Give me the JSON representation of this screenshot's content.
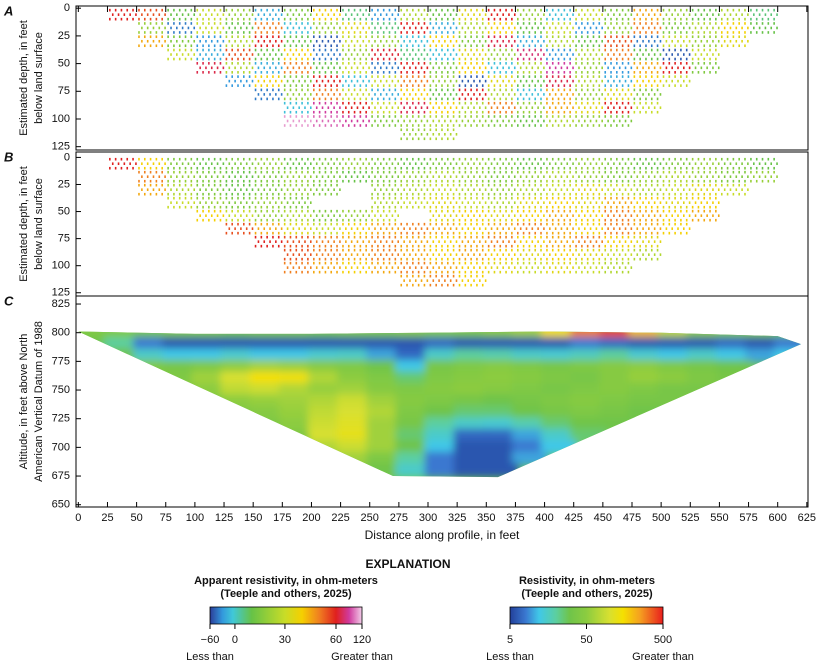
{
  "chart_data": [
    {
      "type": "dot-section",
      "panel": "A",
      "ylabel": [
        "Estimated depth, in feet",
        "below land surface"
      ],
      "x": [
        12.5,
        37.5,
        62.5,
        87.5,
        112.5,
        137.5,
        162.5,
        187.5,
        212.5,
        237.5,
        262.5,
        287.5,
        312.5,
        337.5,
        362.5,
        387.5,
        412.5,
        437.5,
        462.5,
        487.5,
        512.5,
        537.5,
        562.5,
        587.5,
        612.5
      ],
      "y": [
        6,
        18,
        30,
        42,
        54,
        66,
        78,
        90,
        102,
        114
      ],
      "values": [
        [
          null,
          60,
          55,
          10,
          30,
          20,
          -20,
          15,
          40,
          5,
          -30,
          25,
          10,
          35,
          60,
          20,
          -10,
          30,
          15,
          45,
          20,
          10,
          25,
          5,
          null
        ],
        [
          null,
          null,
          20,
          -40,
          30,
          10,
          50,
          -10,
          20,
          35,
          5,
          60,
          -20,
          25,
          40,
          10,
          30,
          -30,
          20,
          50,
          15,
          25,
          40,
          10,
          null
        ],
        [
          null,
          null,
          45,
          15,
          -30,
          25,
          60,
          10,
          -50,
          30,
          20,
          -10,
          40,
          15,
          70,
          -20,
          25,
          10,
          55,
          -40,
          30,
          20,
          35,
          null,
          null
        ],
        [
          null,
          null,
          null,
          30,
          -20,
          55,
          10,
          40,
          -40,
          20,
          65,
          5,
          -10,
          35,
          20,
          80,
          -30,
          25,
          50,
          10,
          -50,
          30,
          null,
          null,
          null
        ],
        [
          null,
          null,
          null,
          null,
          70,
          25,
          -20,
          50,
          10,
          30,
          -40,
          60,
          15,
          40,
          -10,
          25,
          90,
          20,
          -30,
          45,
          60,
          15,
          null,
          null,
          null
        ],
        [
          null,
          null,
          null,
          null,
          null,
          -30,
          40,
          15,
          60,
          -10,
          30,
          50,
          20,
          -50,
          35,
          10,
          70,
          25,
          -20,
          40,
          30,
          null,
          null,
          null,
          null
        ],
        [
          null,
          null,
          null,
          null,
          null,
          null,
          -40,
          20,
          50,
          30,
          -20,
          40,
          10,
          60,
          25,
          -10,
          45,
          20,
          35,
          15,
          null,
          null,
          null,
          null,
          null
        ],
        [
          null,
          null,
          null,
          null,
          null,
          null,
          null,
          -10,
          90,
          60,
          30,
          70,
          40,
          25,
          50,
          20,
          45,
          35,
          60,
          30,
          null,
          null,
          null,
          null,
          null
        ],
        [
          null,
          null,
          null,
          null,
          null,
          null,
          null,
          110,
          100,
          90,
          15,
          20,
          25,
          20,
          15,
          10,
          25,
          20,
          15,
          null,
          null,
          null,
          null,
          null,
          null
        ],
        [
          null,
          null,
          null,
          null,
          null,
          null,
          null,
          null,
          null,
          null,
          null,
          20,
          25,
          null,
          null,
          null,
          null,
          null,
          null,
          null,
          null,
          null,
          null,
          null,
          null
        ]
      ],
      "xlim": [
        -2,
        626
      ],
      "ylim": [
        -2,
        128
      ],
      "yticks": [
        0,
        25,
        50,
        75,
        100,
        125
      ]
    },
    {
      "type": "dot-section",
      "panel": "B",
      "ylabel": [
        "Estimated depth, in feet",
        "below land surface"
      ],
      "x": [
        12.5,
        37.5,
        62.5,
        87.5,
        112.5,
        137.5,
        162.5,
        187.5,
        212.5,
        237.5,
        262.5,
        287.5,
        312.5,
        337.5,
        362.5,
        387.5,
        412.5,
        437.5,
        462.5,
        487.5,
        512.5,
        537.5,
        562.5,
        587.5,
        612.5
      ],
      "y": [
        6,
        18,
        30,
        42,
        54,
        66,
        78,
        90,
        102,
        114
      ],
      "values": [
        [
          null,
          60,
          40,
          15,
          10,
          15,
          20,
          10,
          15,
          20,
          15,
          10,
          15,
          20,
          15,
          10,
          15,
          20,
          15,
          10,
          15,
          20,
          15,
          10,
          null
        ],
        [
          null,
          null,
          50,
          20,
          15,
          10,
          15,
          20,
          15,
          10,
          15,
          20,
          25,
          20,
          15,
          20,
          25,
          20,
          15,
          20,
          25,
          20,
          15,
          20,
          null
        ],
        [
          null,
          null,
          45,
          25,
          15,
          10,
          15,
          20,
          15,
          null,
          20,
          25,
          30,
          25,
          20,
          25,
          30,
          35,
          30,
          25,
          30,
          35,
          30,
          null,
          null
        ],
        [
          null,
          null,
          null,
          30,
          20,
          15,
          20,
          15,
          null,
          null,
          25,
          30,
          35,
          30,
          25,
          35,
          40,
          35,
          45,
          40,
          35,
          40,
          null,
          null,
          null
        ],
        [
          null,
          null,
          null,
          null,
          40,
          30,
          20,
          25,
          15,
          20,
          30,
          null,
          35,
          40,
          35,
          40,
          45,
          40,
          50,
          45,
          40,
          45,
          null,
          null,
          null
        ],
        [
          null,
          null,
          null,
          null,
          null,
          55,
          45,
          35,
          30,
          40,
          45,
          50,
          45,
          40,
          45,
          50,
          45,
          40,
          50,
          45,
          40,
          null,
          null,
          null,
          null
        ],
        [
          null,
          null,
          null,
          null,
          null,
          null,
          60,
          55,
          50,
          45,
          50,
          45,
          40,
          45,
          50,
          40,
          45,
          50,
          40,
          35,
          null,
          null,
          null,
          null,
          null
        ],
        [
          null,
          null,
          null,
          null,
          null,
          null,
          null,
          55,
          50,
          45,
          50,
          45,
          40,
          45,
          40,
          35,
          40,
          35,
          30,
          25,
          null,
          null,
          null,
          null,
          null
        ],
        [
          null,
          null,
          null,
          null,
          null,
          null,
          null,
          50,
          45,
          40,
          45,
          50,
          45,
          40,
          35,
          30,
          35,
          30,
          25,
          null,
          null,
          null,
          null,
          null,
          null
        ],
        [
          null,
          null,
          null,
          null,
          null,
          null,
          null,
          null,
          null,
          null,
          null,
          45,
          50,
          40,
          null,
          null,
          null,
          null,
          null,
          null,
          null,
          null,
          null,
          null,
          null
        ]
      ],
      "xlim": [
        -2,
        626
      ],
      "ylim": [
        -5,
        128
      ],
      "yticks": [
        0,
        25,
        50,
        75,
        100,
        125
      ]
    },
    {
      "type": "contour-section",
      "panel": "C",
      "ylabel": [
        "Altitude, in feet above North",
        "American Vertical Datum of 1988"
      ],
      "xlabel": "Distance along profile, in feet",
      "x": [
        12.5,
        37.5,
        62.5,
        87.5,
        112.5,
        137.5,
        162.5,
        187.5,
        212.5,
        237.5,
        262.5,
        287.5,
        312.5,
        337.5,
        362.5,
        387.5,
        412.5,
        437.5,
        462.5,
        487.5,
        512.5,
        537.5,
        562.5,
        587.5,
        612.5
      ],
      "y": [
        800,
        790,
        780,
        770,
        760,
        750,
        740,
        730,
        720,
        710,
        700,
        690,
        680
      ],
      "values": [
        [
          40,
          40,
          35,
          40,
          40,
          35,
          40,
          40,
          35,
          40,
          40,
          45,
          40,
          40,
          50,
          60,
          150,
          300,
          400,
          200,
          80,
          50,
          40,
          40,
          30
        ],
        [
          30,
          20,
          8,
          6,
          6,
          6,
          6,
          6,
          6,
          6,
          6,
          6,
          7,
          6,
          6,
          6,
          6,
          8,
          7,
          6,
          6,
          6,
          7,
          6,
          8
        ],
        [
          null,
          30,
          15,
          12,
          12,
          14,
          12,
          12,
          14,
          15,
          10,
          7,
          15,
          20,
          18,
          15,
          14,
          16,
          20,
          14,
          12,
          15,
          12,
          10,
          12
        ],
        [
          null,
          null,
          40,
          35,
          40,
          50,
          60,
          55,
          45,
          40,
          30,
          12,
          35,
          40,
          45,
          40,
          35,
          40,
          45,
          50,
          40,
          35,
          30,
          null,
          null
        ],
        [
          null,
          null,
          null,
          40,
          60,
          100,
          150,
          140,
          70,
          50,
          40,
          25,
          40,
          45,
          50,
          45,
          40,
          35,
          45,
          55,
          50,
          40,
          35,
          null,
          null
        ],
        [
          null,
          null,
          null,
          null,
          50,
          80,
          90,
          70,
          55,
          60,
          45,
          40,
          45,
          50,
          45,
          40,
          35,
          40,
          45,
          40,
          35,
          35,
          null,
          null,
          null
        ],
        [
          null,
          null,
          null,
          null,
          null,
          50,
          55,
          60,
          70,
          90,
          60,
          45,
          40,
          35,
          30,
          35,
          40,
          45,
          40,
          35,
          35,
          null,
          null,
          null,
          null
        ],
        [
          null,
          null,
          null,
          null,
          null,
          null,
          45,
          55,
          80,
          100,
          70,
          40,
          30,
          25,
          25,
          30,
          35,
          40,
          35,
          30,
          null,
          null,
          null,
          null,
          null
        ],
        [
          null,
          null,
          null,
          null,
          null,
          null,
          null,
          50,
          90,
          110,
          60,
          35,
          20,
          15,
          14,
          18,
          25,
          30,
          30,
          null,
          null,
          null,
          null,
          null,
          null
        ],
        [
          null,
          null,
          null,
          null,
          null,
          null,
          null,
          null,
          100,
          120,
          60,
          25,
          15,
          7,
          7,
          10,
          15,
          25,
          null,
          null,
          null,
          null,
          null,
          null,
          null
        ],
        [
          null,
          null,
          null,
          null,
          null,
          null,
          null,
          null,
          70,
          90,
          60,
          30,
          12,
          6,
          6,
          8,
          12,
          null,
          null,
          null,
          null,
          null,
          null,
          null,
          null
        ],
        [
          null,
          null,
          null,
          null,
          null,
          null,
          null,
          null,
          null,
          60,
          40,
          20,
          8,
          6,
          6,
          10,
          null,
          null,
          null,
          null,
          null,
          null,
          null,
          null,
          null
        ],
        [
          null,
          null,
          null,
          null,
          null,
          null,
          null,
          null,
          null,
          null,
          30,
          15,
          8,
          6,
          6,
          null,
          null,
          null,
          null,
          null,
          null,
          null,
          null,
          null,
          null
        ]
      ],
      "boundary": {
        "x": [
          0,
          270,
          360,
          620,
          600,
          500,
          400,
          300,
          200,
          100
        ],
        "y": [
          801,
          675,
          674,
          790,
          797,
          800,
          801,
          800,
          799,
          799
        ]
      },
      "xlim": [
        -2,
        626
      ],
      "ylim": [
        648,
        832
      ],
      "xticks": [
        0,
        25,
        50,
        75,
        100,
        125,
        150,
        175,
        200,
        225,
        250,
        275,
        300,
        325,
        350,
        375,
        400,
        425,
        450,
        475,
        500,
        525,
        550,
        575,
        600,
        625
      ],
      "yticks": [
        650,
        675,
        700,
        725,
        750,
        775,
        800,
        825
      ]
    }
  ],
  "legend": {
    "title": "EXPLANATION",
    "scales": [
      {
        "title": [
          "Apparent resistivity, in ohm-meters",
          "(Teeple and others, 2025)"
        ],
        "ticks": [
          {
            "value": -60,
            "label": "−60"
          },
          0,
          30,
          60,
          120
        ],
        "low_label": "Less than",
        "high_label": "Greater than",
        "log": false,
        "stops": [
          {
            "value": -60,
            "color": "#2b3d99"
          },
          {
            "value": -30,
            "color": "#3399dd"
          },
          {
            "value": -5,
            "color": "#40c8d8"
          },
          {
            "value": 10,
            "color": "#66c247"
          },
          {
            "value": 30,
            "color": "#c8dc28"
          },
          {
            "value": 40,
            "color": "#f5d000"
          },
          {
            "value": 50,
            "color": "#f08020"
          },
          {
            "value": 60,
            "color": "#e0201e"
          },
          {
            "value": 90,
            "color": "#d03a9e"
          },
          {
            "value": 120,
            "color": "#f2cce8"
          }
        ]
      },
      {
        "title": [
          "Resistivity, in ohm-meters",
          "(Teeple and others, 2025)"
        ],
        "ticks": [
          5,
          50,
          500
        ],
        "low_label": "Less than",
        "high_label": "Greater than",
        "log": true,
        "stops": [
          {
            "value": 5,
            "color": "#23409a"
          },
          {
            "value": 8,
            "color": "#3a78d0"
          },
          {
            "value": 12,
            "color": "#40c8e8"
          },
          {
            "value": 20,
            "color": "#5ccfa0"
          },
          {
            "value": 30,
            "color": "#6fc44a"
          },
          {
            "value": 50,
            "color": "#8ccc40"
          },
          {
            "value": 100,
            "color": "#d8e030"
          },
          {
            "value": 150,
            "color": "#f5e000"
          },
          {
            "value": 250,
            "color": "#f5a020"
          },
          {
            "value": 500,
            "color": "#e81e1e"
          }
        ]
      }
    ]
  }
}
